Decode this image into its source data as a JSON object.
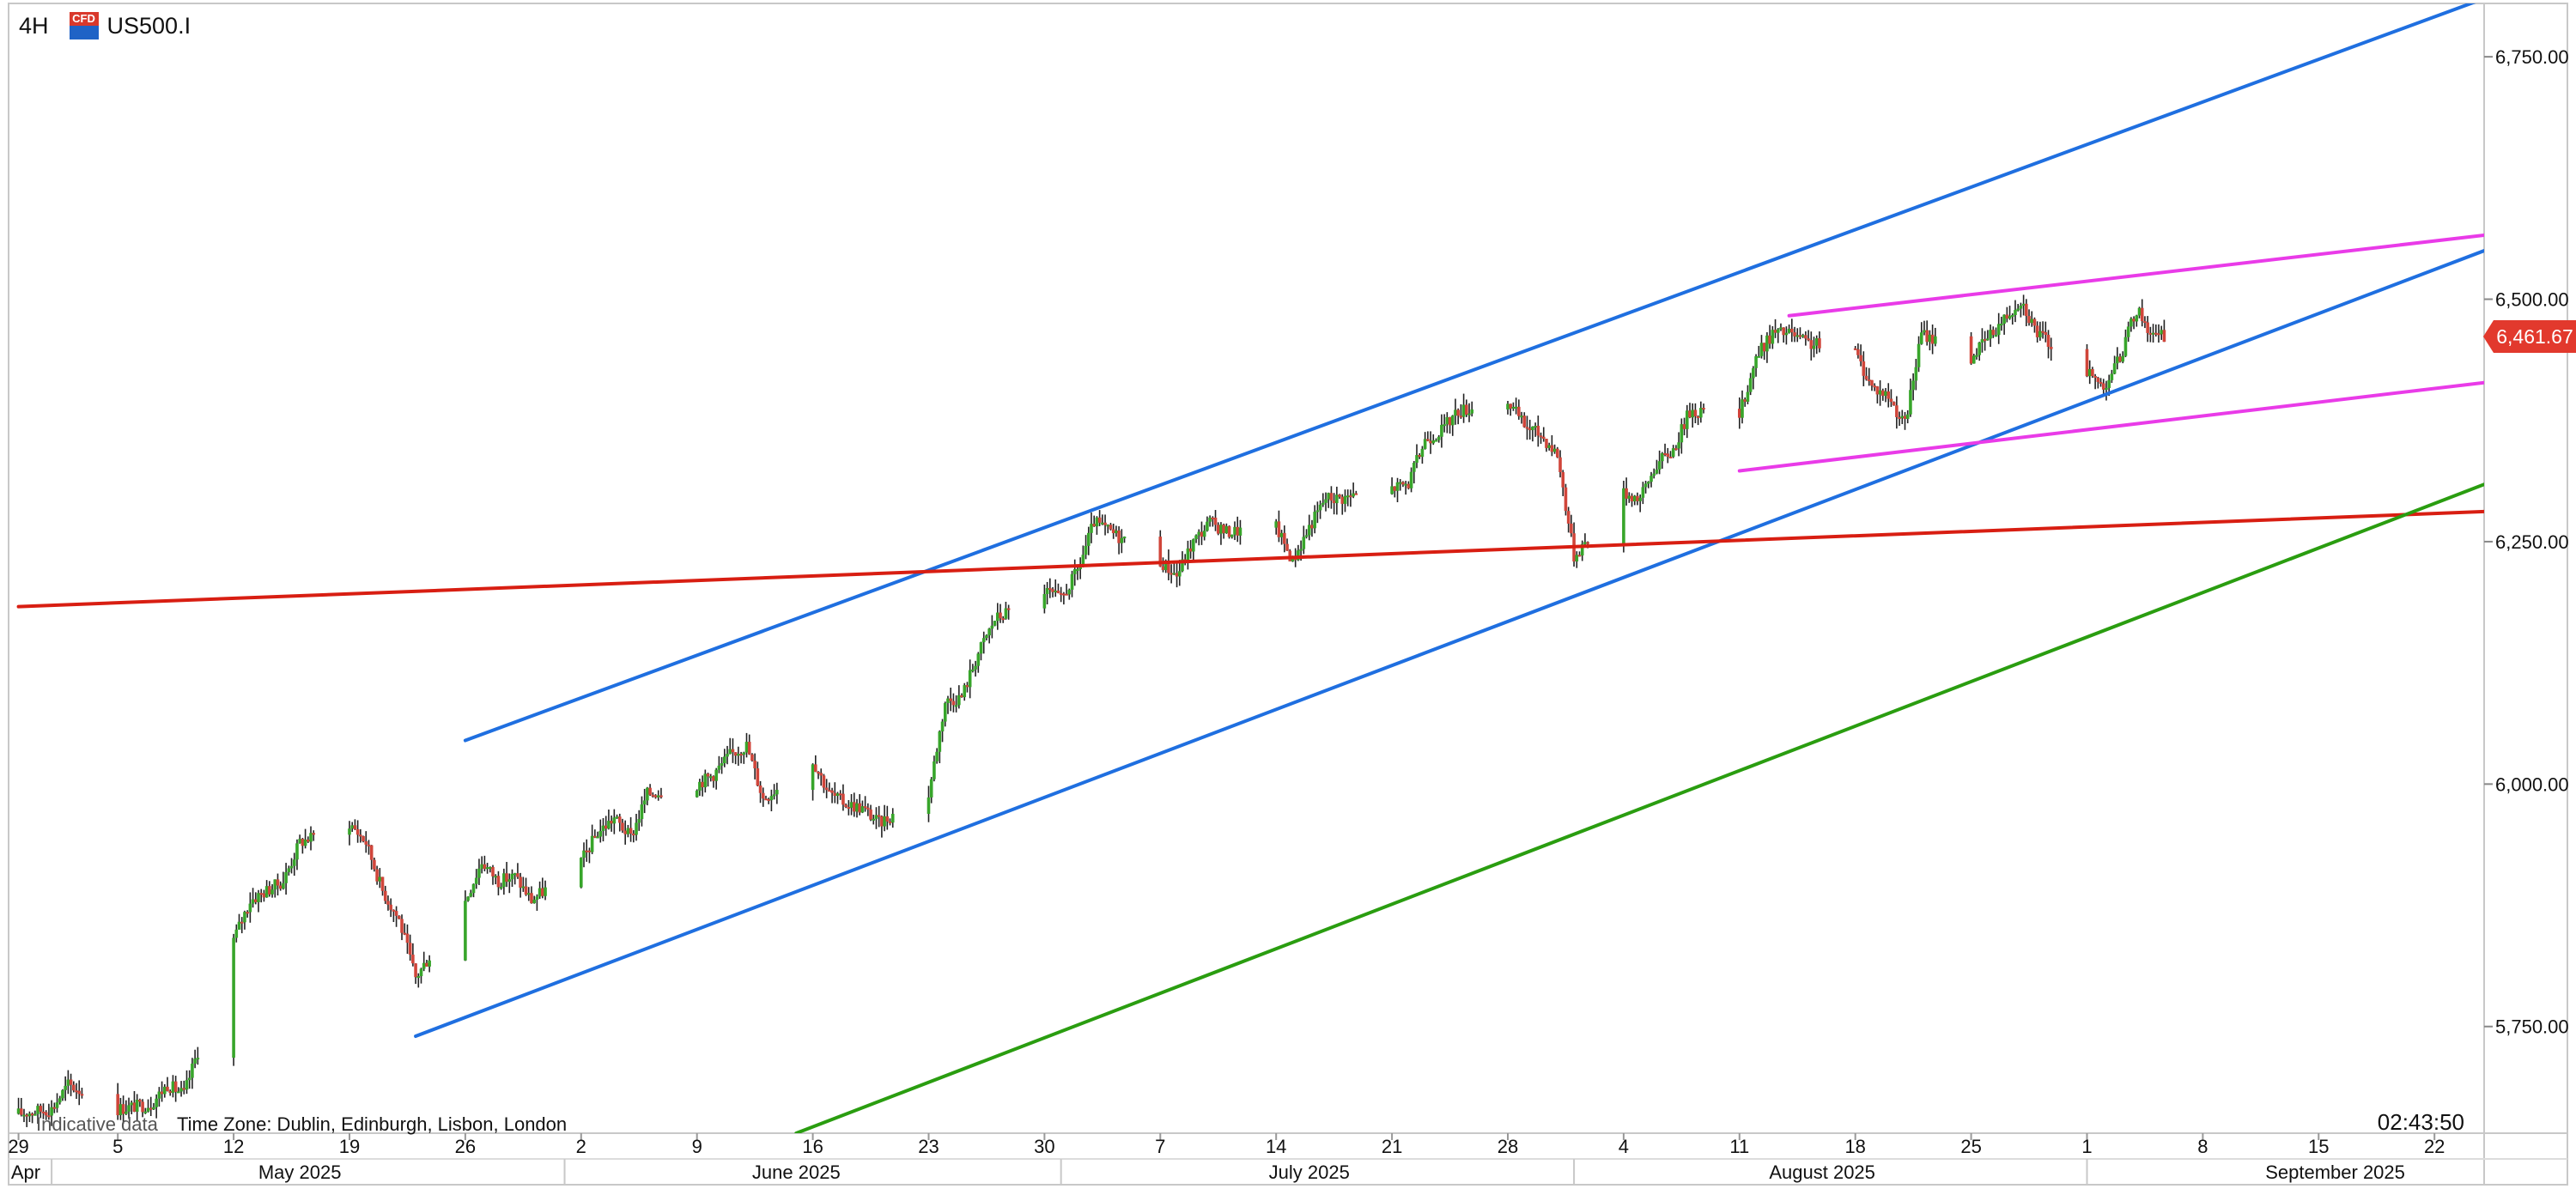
{
  "header": {
    "timeframe": "4H",
    "symbol": "US500.I",
    "badge": "CFD"
  },
  "footer": {
    "indicative_text": "Indicative data",
    "timezone": "Time Zone: Dublin, Edinburgh, Lisbon, London",
    "clock": "02:43:50"
  },
  "colors": {
    "channel": "#1f6fe0",
    "wedge": "#e93be8",
    "support": "#d81e12",
    "trend": "#2a9d10",
    "bull": "#37a52a",
    "bear": "#d0453a",
    "wick": "#222222",
    "price_tag": "#e2392d"
  },
  "chart_data": {
    "type": "candlestick",
    "title": "",
    "xlabel": "",
    "ylabel": "",
    "y_axis_side": "right",
    "ylim": [
      5640,
      6805
    ],
    "y_ticks": [
      5750,
      6000,
      6250,
      6500,
      6750
    ],
    "y_tick_labels": [
      "5,750.00",
      "6,000.00",
      "6,250.00",
      "6,500.00",
      "6,750.00"
    ],
    "x_range": [
      "2025-04-29",
      "2025-09-25"
    ],
    "x_ticks": [
      {
        "date": "2025-04-29",
        "label": "29"
      },
      {
        "date": "2025-05-05",
        "label": "5"
      },
      {
        "date": "2025-05-12",
        "label": "12"
      },
      {
        "date": "2025-05-19",
        "label": "19"
      },
      {
        "date": "2025-05-26",
        "label": "26"
      },
      {
        "date": "2025-06-02",
        "label": "2"
      },
      {
        "date": "2025-06-09",
        "label": "9"
      },
      {
        "date": "2025-06-16",
        "label": "16"
      },
      {
        "date": "2025-06-23",
        "label": "23"
      },
      {
        "date": "2025-06-30",
        "label": "30"
      },
      {
        "date": "2025-07-07",
        "label": "7"
      },
      {
        "date": "2025-07-14",
        "label": "14"
      },
      {
        "date": "2025-07-21",
        "label": "21"
      },
      {
        "date": "2025-07-28",
        "label": "28"
      },
      {
        "date": "2025-08-04",
        "label": "4"
      },
      {
        "date": "2025-08-11",
        "label": "11"
      },
      {
        "date": "2025-08-18",
        "label": "18"
      },
      {
        "date": "2025-08-25",
        "label": "25"
      },
      {
        "date": "2025-09-01",
        "label": "1"
      },
      {
        "date": "2025-09-08",
        "label": "8"
      },
      {
        "date": "2025-09-15",
        "label": "15"
      },
      {
        "date": "2025-09-22",
        "label": "22"
      }
    ],
    "month_labels": [
      {
        "date": "2025-04-29",
        "label": "Apr"
      },
      {
        "date": "2025-05-16",
        "label": "May 2025"
      },
      {
        "date": "2025-06-15",
        "label": "June 2025"
      },
      {
        "date": "2025-07-16",
        "label": "July 2025"
      },
      {
        "date": "2025-08-16",
        "label": "August 2025"
      },
      {
        "date": "2025-09-16",
        "label": "September 2025"
      }
    ],
    "month_boundaries": [
      "2025-05-01",
      "2025-06-01",
      "2025-07-01",
      "2025-08-01",
      "2025-09-01"
    ],
    "last_price": 6461.67,
    "last_price_label": "6,461.67",
    "price_path": [
      [
        "2025-04-29",
        5660
      ],
      [
        "2025-05-01",
        5665
      ],
      [
        "2025-05-02",
        5690
      ],
      [
        "2025-05-05",
        5665
      ],
      [
        "2025-05-07",
        5670
      ],
      [
        "2025-05-08",
        5690
      ],
      [
        "2025-05-09",
        5680
      ],
      [
        "2025-05-12",
        5840
      ],
      [
        "2025-05-13",
        5880
      ],
      [
        "2025-05-14",
        5890
      ],
      [
        "2025-05-15",
        5900
      ],
      [
        "2025-05-16",
        5940
      ],
      [
        "2025-05-19",
        5960
      ],
      [
        "2025-05-20",
        5940
      ],
      [
        "2025-05-21",
        5890
      ],
      [
        "2025-05-22",
        5860
      ],
      [
        "2025-05-23",
        5800
      ],
      [
        "2025-05-26",
        5880
      ],
      [
        "2025-05-27",
        5920
      ],
      [
        "2025-05-28",
        5900
      ],
      [
        "2025-05-29",
        5905
      ],
      [
        "2025-05-30",
        5880
      ],
      [
        "2025-06-02",
        5920
      ],
      [
        "2025-06-03",
        5950
      ],
      [
        "2025-06-04",
        5965
      ],
      [
        "2025-06-05",
        5945
      ],
      [
        "2025-06-06",
        5990
      ],
      [
        "2025-06-09",
        6000
      ],
      [
        "2025-06-10",
        6010
      ],
      [
        "2025-06-11",
        6030
      ],
      [
        "2025-06-12",
        6040
      ],
      [
        "2025-06-13",
        5985
      ],
      [
        "2025-06-16",
        6025
      ],
      [
        "2025-06-17",
        5990
      ],
      [
        "2025-06-18",
        5980
      ],
      [
        "2025-06-19",
        5975
      ],
      [
        "2025-06-20",
        5960
      ],
      [
        "2025-06-23",
        5990
      ],
      [
        "2025-06-24",
        6085
      ],
      [
        "2025-06-25",
        6090
      ],
      [
        "2025-06-26",
        6135
      ],
      [
        "2025-06-27",
        6170
      ],
      [
        "2025-06-30",
        6200
      ],
      [
        "2025-07-01",
        6190
      ],
      [
        "2025-07-02",
        6220
      ],
      [
        "2025-07-03",
        6270
      ],
      [
        "2025-07-07",
        6230
      ],
      [
        "2025-07-08",
        6215
      ],
      [
        "2025-07-09",
        6250
      ],
      [
        "2025-07-10",
        6270
      ],
      [
        "2025-07-11",
        6260
      ],
      [
        "2025-07-14",
        6265
      ],
      [
        "2025-07-15",
        6230
      ],
      [
        "2025-07-16",
        6265
      ],
      [
        "2025-07-17",
        6295
      ],
      [
        "2025-07-18",
        6295
      ],
      [
        "2025-07-21",
        6305
      ],
      [
        "2025-07-22",
        6310
      ],
      [
        "2025-07-23",
        6355
      ],
      [
        "2025-07-24",
        6365
      ],
      [
        "2025-07-25",
        6385
      ],
      [
        "2025-07-28",
        6395
      ],
      [
        "2025-07-29",
        6370
      ],
      [
        "2025-07-30",
        6360
      ],
      [
        "2025-07-31",
        6340
      ],
      [
        "2025-08-01",
        6235
      ],
      [
        "2025-08-04",
        6300
      ],
      [
        "2025-08-05",
        6295
      ],
      [
        "2025-08-06",
        6330
      ],
      [
        "2025-08-07",
        6345
      ],
      [
        "2025-08-08",
        6385
      ],
      [
        "2025-08-11",
        6380
      ],
      [
        "2025-08-12",
        6440
      ],
      [
        "2025-08-13",
        6465
      ],
      [
        "2025-08-14",
        6465
      ],
      [
        "2025-08-15",
        6455
      ],
      [
        "2025-08-18",
        6445
      ],
      [
        "2025-08-19",
        6410
      ],
      [
        "2025-08-20",
        6400
      ],
      [
        "2025-08-21",
        6370
      ],
      [
        "2025-08-22",
        6465
      ],
      [
        "2025-08-25",
        6440
      ],
      [
        "2025-08-26",
        6460
      ],
      [
        "2025-08-27",
        6480
      ],
      [
        "2025-08-28",
        6500
      ],
      [
        "2025-08-29",
        6465
      ],
      [
        "2025-09-02",
        6410
      ],
      [
        "2025-09-03",
        6440
      ],
      [
        "2025-09-04",
        6490
      ],
      [
        "2025-09-05",
        6461.67
      ]
    ],
    "trendlines": [
      {
        "color_key": "channel",
        "from": [
          "2025-05-26",
          6045
        ],
        "to": [
          "2025-09-25",
          6810
        ]
      },
      {
        "color_key": "channel",
        "from": [
          "2025-05-23",
          5740
        ],
        "to": [
          "2025-09-25",
          6550
        ]
      },
      {
        "color_key": "wedge",
        "from": [
          "2025-08-14",
          6483
        ],
        "to": [
          "2025-09-25",
          6566
        ]
      },
      {
        "color_key": "wedge",
        "from": [
          "2025-08-11",
          6323
        ],
        "to": [
          "2025-09-25",
          6414
        ]
      },
      {
        "color_key": "support",
        "from": [
          "2025-04-29",
          6183
        ],
        "to": [
          "2025-09-25",
          6281
        ]
      },
      {
        "color_key": "trend",
        "from": [
          "2025-06-15",
          5640
        ],
        "to": [
          "2025-09-25",
          6309
        ]
      }
    ]
  }
}
